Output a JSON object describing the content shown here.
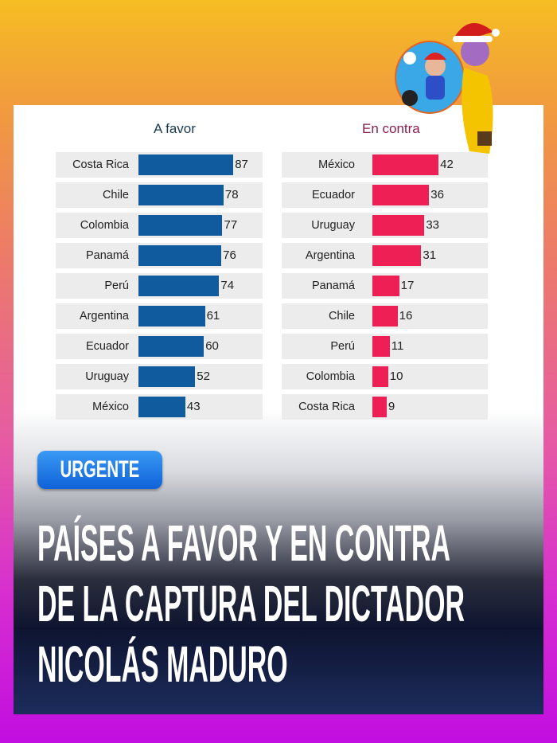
{
  "badge": "URGENTE",
  "headline": [
    "PAÍSES A FAVOR Y EN CONTRA",
    "DE LA CAPTURA DEL DICTADOR",
    "NICOLÁS MADURO"
  ],
  "chart_data": [
    {
      "type": "bar",
      "orientation": "horizontal",
      "title": "A favor",
      "color": "#0f5b9e",
      "categories": [
        "Costa Rica",
        "Chile",
        "Colombia",
        "Panamá",
        "Perú",
        "Argentina",
        "Ecuador",
        "Uruguay",
        "México"
      ],
      "values": [
        87,
        78,
        77,
        76,
        74,
        61,
        60,
        52,
        43
      ]
    },
    {
      "type": "bar",
      "orientation": "horizontal",
      "title": "En contra",
      "color": "#ee1f55",
      "categories": [
        "México",
        "Ecuador",
        "Uruguay",
        "Argentina",
        "Panamá",
        "Chile",
        "Perú",
        "Colombia",
        "Costa Rica"
      ],
      "values": [
        42,
        36,
        33,
        31,
        17,
        16,
        11,
        10,
        9
      ]
    }
  ],
  "stickers": [
    "mario-caricature-icon",
    "santa-hat-figure-icon"
  ]
}
